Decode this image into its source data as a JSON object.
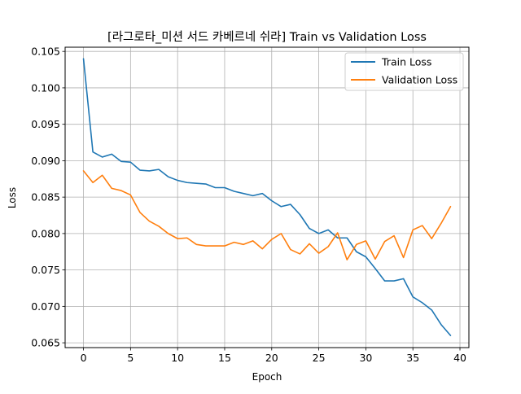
{
  "chart_data": {
    "type": "line",
    "title": "[라그로타_미션 서드 카베르네 쉬라] Train vs Validation Loss",
    "xlabel": "Epoch",
    "ylabel": "Loss",
    "xlim": [
      -1.95,
      40.95
    ],
    "ylim": [
      0.06434,
      0.10558
    ],
    "x_ticks": [
      0,
      5,
      10,
      15,
      20,
      25,
      30,
      35,
      40
    ],
    "y_ticks": [
      0.065,
      0.07,
      0.075,
      0.08,
      0.085,
      0.09,
      0.095,
      0.1,
      0.105
    ],
    "y_tick_labels": [
      "0.065",
      "0.070",
      "0.075",
      "0.080",
      "0.085",
      "0.090",
      "0.095",
      "0.100",
      "0.105"
    ],
    "grid": true,
    "legend_position": "top-right",
    "x": [
      0,
      1,
      2,
      3,
      4,
      5,
      6,
      7,
      8,
      9,
      10,
      11,
      12,
      13,
      14,
      15,
      16,
      17,
      18,
      19,
      20,
      21,
      22,
      23,
      24,
      25,
      26,
      27,
      28,
      29,
      30,
      31,
      32,
      33,
      34,
      35,
      36,
      37,
      38,
      39
    ],
    "series": [
      {
        "name": "Train Loss",
        "color": "#1f77b4",
        "values": [
          0.104,
          0.0912,
          0.0905,
          0.0909,
          0.0899,
          0.0898,
          0.0887,
          0.0886,
          0.0888,
          0.0878,
          0.0873,
          0.087,
          0.0869,
          0.0868,
          0.0863,
          0.0863,
          0.0858,
          0.0855,
          0.0852,
          0.0855,
          0.0845,
          0.0837,
          0.084,
          0.0826,
          0.0807,
          0.08,
          0.0805,
          0.0794,
          0.0794,
          0.0775,
          0.0768,
          0.0752,
          0.0735,
          0.0735,
          0.0738,
          0.0713,
          0.0705,
          0.0695,
          0.0675,
          0.066
        ]
      },
      {
        "name": "Validation Loss",
        "color": "#ff7f0e",
        "values": [
          0.0886,
          0.087,
          0.088,
          0.0862,
          0.0859,
          0.0853,
          0.0829,
          0.0817,
          0.081,
          0.08,
          0.0793,
          0.0794,
          0.0785,
          0.0783,
          0.0783,
          0.0783,
          0.0788,
          0.0785,
          0.079,
          0.0779,
          0.0792,
          0.08,
          0.0778,
          0.0772,
          0.0786,
          0.0773,
          0.0782,
          0.0801,
          0.0764,
          0.0785,
          0.079,
          0.0765,
          0.0789,
          0.0797,
          0.0767,
          0.0805,
          0.0811,
          0.0793,
          0.0814,
          0.0837
        ]
      }
    ]
  }
}
